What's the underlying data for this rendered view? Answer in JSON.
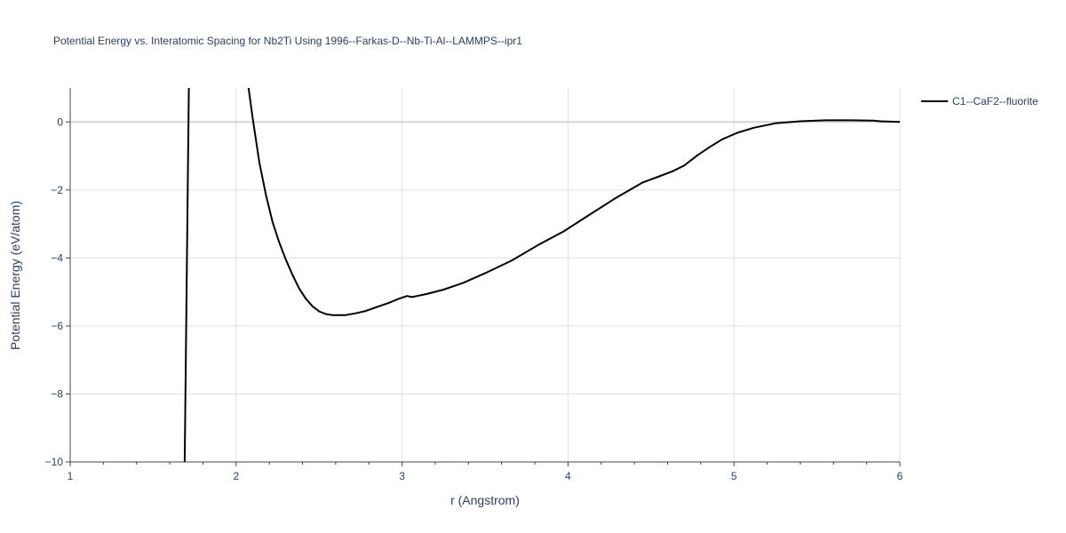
{
  "chart_data": {
    "type": "line",
    "title": "Potential Energy vs. Interatomic Spacing for Nb2Ti Using 1996--Farkas-D--Nb-Ti-Al--LAMMPS--ipr1",
    "xlabel": "r (Angstrom)",
    "ylabel": "Potential Energy (eV/atom)",
    "xlim": [
      1,
      6
    ],
    "ylim": [
      -10,
      1
    ],
    "x_ticks": [
      1,
      2,
      3,
      4,
      5,
      6
    ],
    "x_tick_labels": [
      "1",
      "2",
      "3",
      "4",
      "5",
      "6"
    ],
    "y_ticks": [
      0,
      -2,
      -4,
      -6,
      -8,
      -10
    ],
    "y_tick_labels": [
      "0",
      "−2",
      "−4",
      "−6",
      "−8",
      "−10"
    ],
    "grid": true,
    "legend_position": "top-right",
    "series": [
      {
        "name": "C1--CaF2--fluorite",
        "color": "#000000",
        "segments": [
          {
            "x": [
              1.69,
              1.715
            ],
            "y": [
              -10,
              1
            ]
          },
          {
            "x": [
              2.075,
              2.1,
              2.14,
              2.18,
              2.22,
              2.26,
              2.3,
              2.34,
              2.38,
              2.42,
              2.46,
              2.5,
              2.54,
              2.58,
              2.62,
              2.66,
              2.72,
              2.78,
              2.85,
              2.92,
              2.98,
              3.03,
              3.06,
              3.1,
              3.15,
              3.25,
              3.37,
              3.5,
              3.66,
              3.82,
              3.97,
              4.12,
              4.28,
              4.45,
              4.55,
              4.63,
              4.7,
              4.78,
              4.86,
              4.93,
              5.02,
              5.12,
              5.25,
              5.4,
              5.55,
              5.7,
              5.84,
              5.88,
              6.0
            ],
            "y": [
              1.0,
              0.1,
              -1.2,
              -2.15,
              -2.95,
              -3.55,
              -4.05,
              -4.5,
              -4.9,
              -5.2,
              -5.42,
              -5.57,
              -5.65,
              -5.68,
              -5.68,
              -5.68,
              -5.63,
              -5.56,
              -5.44,
              -5.32,
              -5.2,
              -5.12,
              -5.15,
              -5.11,
              -5.06,
              -4.93,
              -4.73,
              -4.45,
              -4.08,
              -3.62,
              -3.23,
              -2.76,
              -2.26,
              -1.78,
              -1.6,
              -1.45,
              -1.28,
              -0.98,
              -0.72,
              -0.51,
              -0.32,
              -0.17,
              -0.04,
              0.02,
              0.05,
              0.05,
              0.04,
              0.02,
              0.0
            ]
          }
        ]
      }
    ]
  }
}
